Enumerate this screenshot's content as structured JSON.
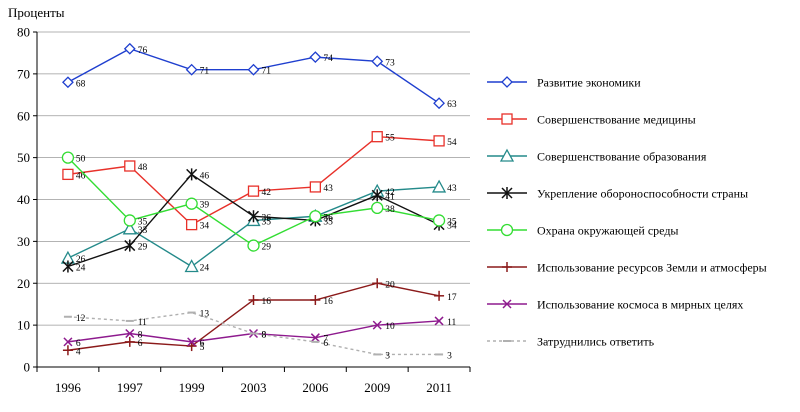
{
  "chart_data": {
    "type": "line",
    "ylabel": "Проценты",
    "ylim": [
      0,
      80
    ],
    "y_ticks": [
      0,
      10,
      20,
      30,
      40,
      50,
      60,
      70,
      80
    ],
    "categories": [
      "1996",
      "1997",
      "1999",
      "2003",
      "2006",
      "2009",
      "2011"
    ],
    "grid": true,
    "legend_position": "right",
    "series": [
      {
        "name": "Развитие  экономики",
        "color": "#1f3fcf",
        "marker": "diamond",
        "dash": "",
        "values": [
          68,
          76,
          71,
          71,
          74,
          73,
          63
        ]
      },
      {
        "name": "Совершенствование медицины",
        "color": "#e8312a",
        "marker": "square",
        "dash": "",
        "values": [
          46,
          48,
          34,
          42,
          43,
          55,
          54
        ]
      },
      {
        "name": "Совершенствование образования",
        "color": "#248a8a",
        "marker": "triangle",
        "dash": "",
        "values": [
          26,
          33,
          24,
          35,
          36,
          42,
          43
        ]
      },
      {
        "name": "Укрепление обороноспособности страны",
        "color": "#111111",
        "marker": "asterisk",
        "dash": "",
        "values": [
          24,
          29,
          46,
          36,
          35,
          41,
          34
        ]
      },
      {
        "name": "Охрана окружающей среды",
        "color": "#33dd33",
        "marker": "circle",
        "dash": "",
        "values": [
          50,
          35,
          39,
          29,
          36,
          38,
          35
        ]
      },
      {
        "name": "Использование ресурсов Земли и атмосферы",
        "color": "#8b1a1a",
        "marker": "plus",
        "dash": "",
        "values": [
          4,
          6,
          5,
          16,
          16,
          20,
          17
        ]
      },
      {
        "name": "Использование космоса в мирных целях",
        "color": "#8e1a8e",
        "marker": "x",
        "dash": "",
        "values": [
          6,
          8,
          6,
          8,
          7,
          10,
          11
        ]
      },
      {
        "name": "Затруднились ответить",
        "color": "#b0b0b0",
        "marker": "dash",
        "dash": "3,3",
        "values": [
          12,
          11,
          13,
          8,
          6,
          3,
          3
        ]
      }
    ]
  }
}
